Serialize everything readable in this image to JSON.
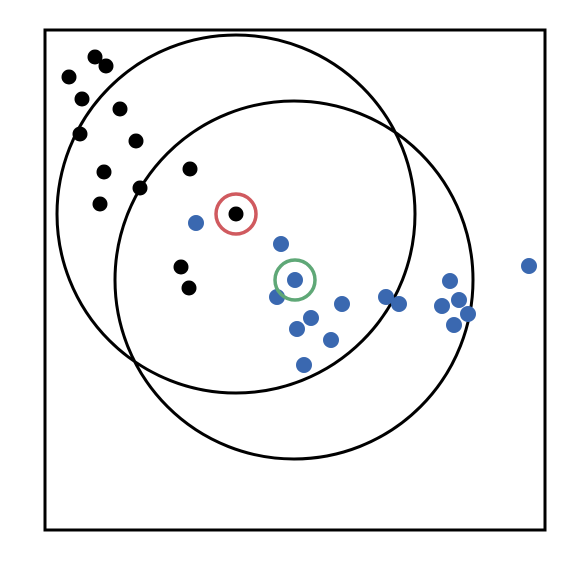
{
  "colors": {
    "background": "#ffffff",
    "frame": "#000000",
    "cluster_a_points": "#000000",
    "cluster_b_points": "#3a68b0",
    "cluster_a_center_marker": "#d05a5f",
    "cluster_b_center_marker": "#5fa877",
    "circles": "#000000"
  },
  "icons": {
    "cluster_a_center_marker": "red-ring-icon",
    "cluster_b_center_marker": "green-ring-icon"
  }
}
